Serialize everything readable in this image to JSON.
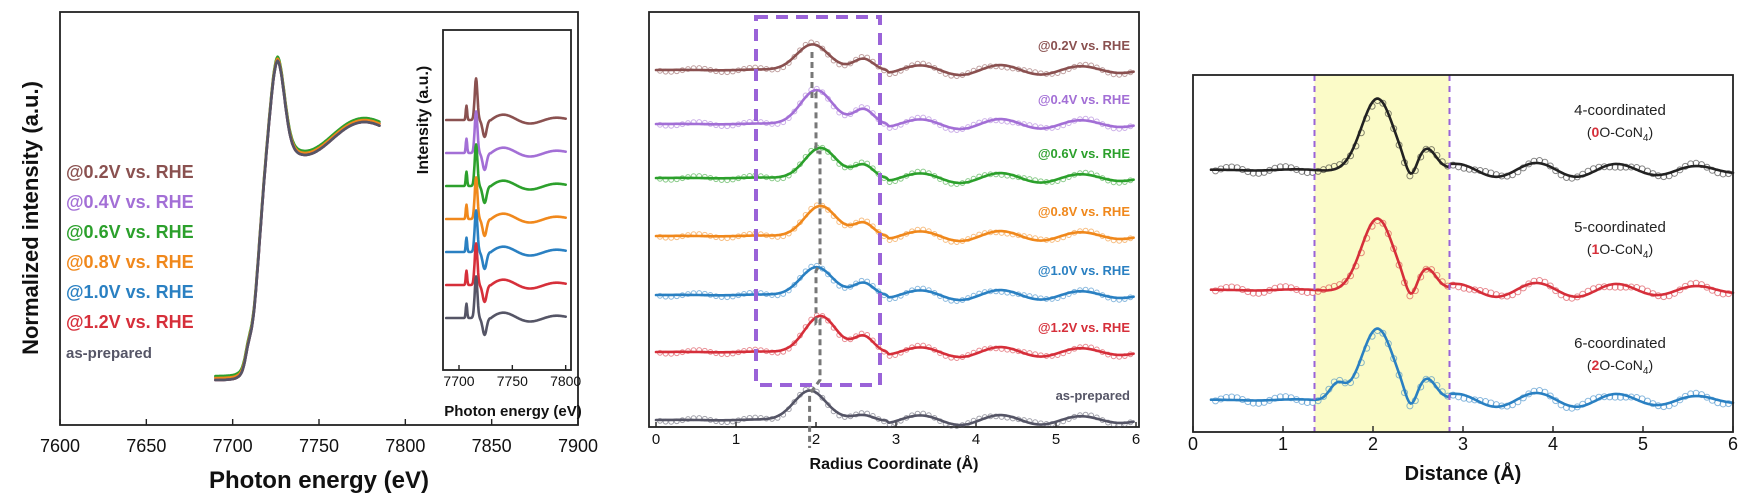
{
  "colors": {
    "@0.2V vs. RHE": "#8a5150",
    "@0.4V vs. RHE": "#a36fd6",
    "@0.6V vs. RHE": "#2ca02c",
    "@0.8V vs. RHE": "#f0881c",
    "@1.0V vs. RHE": "#2a80c2",
    "@1.2V vs. RHE": "#d62f3a",
    "as-prepared": "#555566",
    "4-coordinated": "#222222",
    "5-coordinated": "#d62f3a",
    "6-coordinated": "#2a80c2",
    "region_box": "#9a63d8",
    "highlight": "#fbfbc8"
  },
  "chart_data": [
    {
      "type": "line",
      "panel": "xanes",
      "xlabel": "Photon energy (eV)",
      "ylabel": "Normalized intensity (a.u.)",
      "xlim": [
        7600,
        7900
      ],
      "xticks": [
        7600,
        7650,
        7700,
        7750,
        7800,
        7850,
        7900
      ],
      "series": [
        {
          "name": "@0.2V vs. RHE"
        },
        {
          "name": "@0.4V vs. RHE"
        },
        {
          "name": "@0.6V vs. RHE"
        },
        {
          "name": "@0.8V vs. RHE"
        },
        {
          "name": "@1.0V vs. RHE"
        },
        {
          "name": "@1.2V vs. RHE"
        },
        {
          "name": "as-prepared"
        }
      ],
      "edge_energy": 7715,
      "white_line_peak": 7726,
      "data_range": [
        7690,
        7785
      ]
    },
    {
      "type": "line",
      "panel": "xanes-inset",
      "xlabel": "Photon energy (eV)",
      "ylabel": "Intensity (a.u.)",
      "xlim": [
        7685,
        7805
      ],
      "xticks": [
        7700,
        7750,
        7800
      ],
      "series_order": [
        "@0.2V vs. RHE",
        "@0.4V vs. RHE",
        "@0.6V vs. RHE",
        "@0.8V vs. RHE",
        "@1.0V vs. RHE",
        "@1.2V vs. RHE",
        "as-prepared"
      ]
    },
    {
      "type": "line",
      "panel": "ft-exafs",
      "xlabel": "Radius Coordinate (Å)",
      "xlim": [
        0,
        6
      ],
      "xticks": [
        0,
        1,
        2,
        3,
        4,
        5,
        6
      ],
      "highlight_range": [
        1.25,
        2.8
      ],
      "peak_positions": [
        1.95,
        2.0,
        2.05,
        2.05,
        2.0,
        2.05,
        1.92
      ],
      "series": [
        {
          "name": "@0.2V vs. RHE"
        },
        {
          "name": "@0.4V vs. RHE"
        },
        {
          "name": "@0.6V vs. RHE"
        },
        {
          "name": "@0.8V vs. RHE"
        },
        {
          "name": "@1.0V vs. RHE"
        },
        {
          "name": "@1.2V vs. RHE"
        },
        {
          "name": "as-prepared"
        }
      ]
    },
    {
      "type": "line",
      "panel": "fit",
      "xlabel": "Distance (Å)",
      "xlim": [
        0,
        6
      ],
      "xticks": [
        0,
        1,
        2,
        3,
        4,
        5,
        6
      ],
      "highlight_range": [
        1.35,
        2.85
      ],
      "series": [
        {
          "name": "4-coordinated",
          "sub_prefix": "0",
          "sub_text": "O-CoN",
          "sub_index": "4"
        },
        {
          "name": "5-coordinated",
          "sub_prefix": "1",
          "sub_text": "O-CoN",
          "sub_index": "4"
        },
        {
          "name": "6-coordinated",
          "sub_prefix": "2",
          "sub_text": "O-CoN",
          "sub_index": "4"
        }
      ]
    }
  ]
}
